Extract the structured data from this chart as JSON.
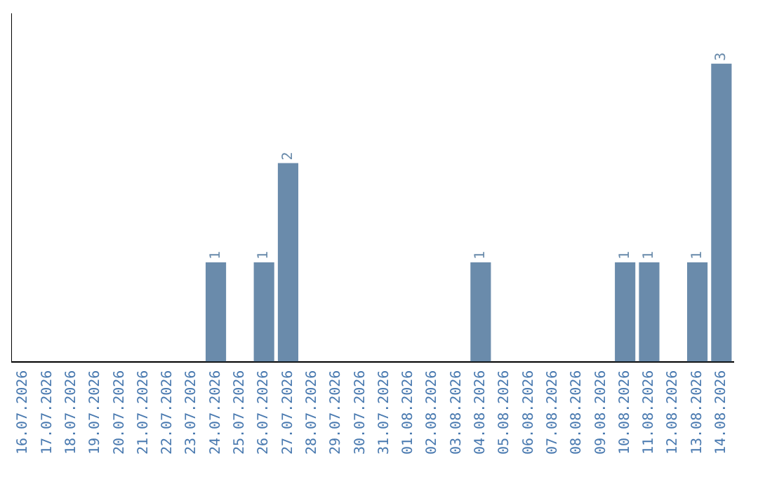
{
  "chart_data": {
    "type": "bar",
    "categories": [
      "16.07.2026",
      "17.07.2026",
      "18.07.2026",
      "19.07.2026",
      "20.07.2026",
      "21.07.2026",
      "22.07.2026",
      "23.07.2026",
      "24.07.2026",
      "25.07.2026",
      "26.07.2026",
      "27.07.2026",
      "28.07.2026",
      "29.07.2026",
      "30.07.2026",
      "31.07.2026",
      "01.08.2026",
      "02.08.2026",
      "03.08.2026",
      "04.08.2026",
      "05.08.2026",
      "06.08.2026",
      "07.08.2026",
      "08.08.2026",
      "09.08.2026",
      "10.08.2026",
      "11.08.2026",
      "12.08.2026",
      "13.08.2026",
      "14.08.2026"
    ],
    "values": [
      0,
      0,
      0,
      0,
      0,
      0,
      0,
      0,
      1,
      0,
      1,
      2,
      0,
      0,
      0,
      0,
      0,
      0,
      0,
      1,
      0,
      0,
      0,
      0,
      0,
      1,
      1,
      0,
      1,
      3
    ],
    "value_labels": [
      null,
      null,
      null,
      null,
      null,
      null,
      null,
      null,
      "1",
      null,
      "1",
      "2",
      null,
      null,
      null,
      null,
      null,
      null,
      null,
      "1",
      null,
      null,
      null,
      null,
      null,
      "1",
      "1",
      null,
      "1",
      "3"
    ],
    "color": "#6a8bab",
    "grid": false,
    "legend": false,
    "tick_labels": "x"
  }
}
